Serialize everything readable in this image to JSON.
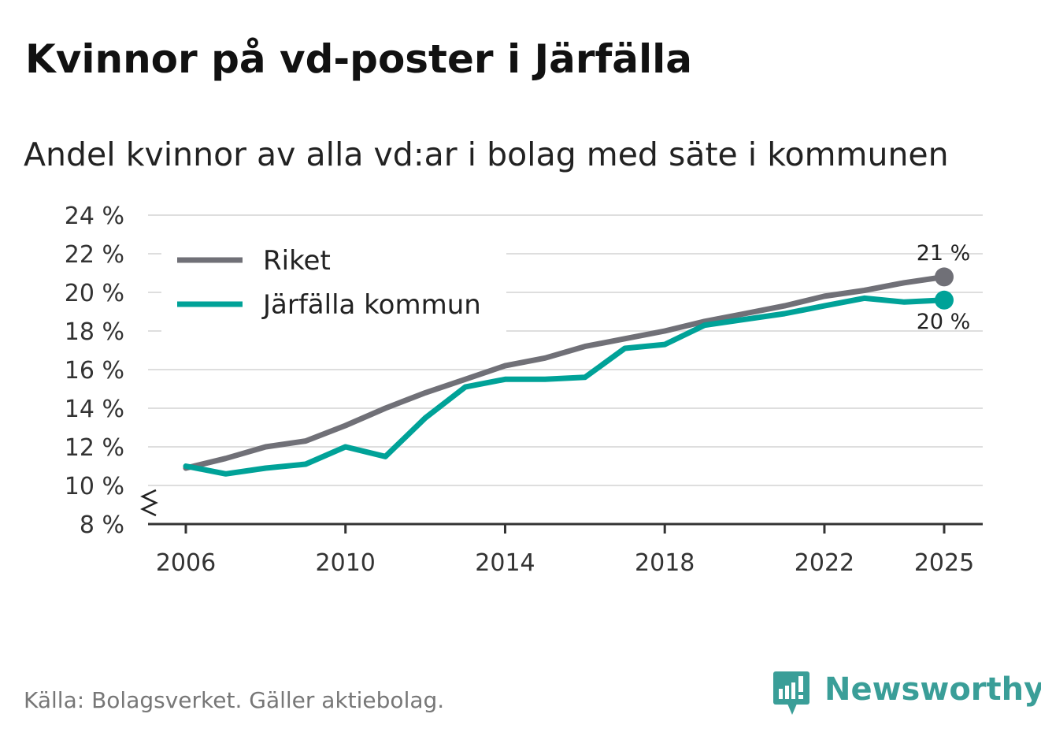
{
  "chart_data": {
    "type": "line",
    "title": "Kvinnor på vd-poster i Järfälla",
    "subtitle": "Andel kvinnor av alla vd:ar i bolag med säte i kommunen",
    "source": "Källa: Bolagsverket. Gäller aktiebolag.",
    "brand": "Newsworthy",
    "x": [
      2006,
      2007,
      2008,
      2009,
      2010,
      2011,
      2012,
      2013,
      2014,
      2015,
      2016,
      2017,
      2018,
      2019,
      2020,
      2021,
      2022,
      2023,
      2024,
      2025
    ],
    "x_ticks": [
      2006,
      2010,
      2014,
      2018,
      2022,
      2025
    ],
    "y_ticks": [
      8,
      10,
      12,
      14,
      16,
      18,
      20,
      22,
      24
    ],
    "ylim": [
      8,
      24
    ],
    "y_unit": " %",
    "series": [
      {
        "name": "Riket",
        "color": "#707077",
        "values": [
          10.9,
          11.4,
          12.0,
          12.3,
          13.1,
          14.0,
          14.8,
          15.5,
          16.2,
          16.6,
          17.2,
          17.6,
          18.0,
          18.5,
          18.9,
          19.3,
          19.8,
          20.1,
          20.5,
          20.8
        ],
        "end_label": "21 %"
      },
      {
        "name": "Järfälla kommun",
        "color": "#00a298",
        "values": [
          11.0,
          10.6,
          10.9,
          11.1,
          12.0,
          11.5,
          13.5,
          15.1,
          15.5,
          15.5,
          15.6,
          17.1,
          17.3,
          18.3,
          18.6,
          18.9,
          19.3,
          19.7,
          19.5,
          19.6
        ],
        "end_label": "20 %"
      }
    ],
    "legend_position": "top-left",
    "axis_break": true
  }
}
